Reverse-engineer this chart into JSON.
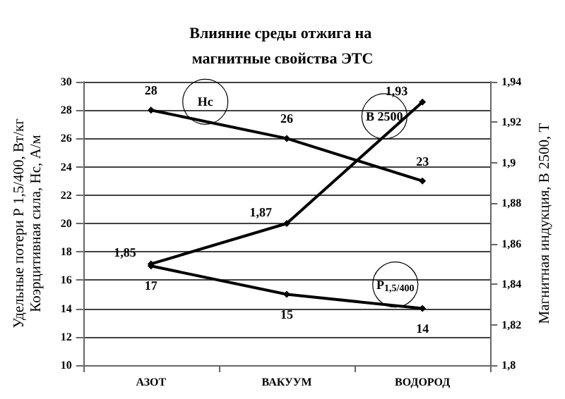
{
  "chart_data": {
    "type": "line",
    "title": "Влияние среды отжига на магнитные свойства ЭТС",
    "ylabel": "Удельные потери Р 1,5/400, Вт/кг\nКоэрцитивная сила, Нс, А/м",
    "y2label": "Магнитная индукция, В 2500, Т",
    "categories": [
      "АЗОТ",
      "ВАКУУМ",
      "ВОДОРОД"
    ],
    "series": [
      {
        "name": "Нс",
        "color": "#000000",
        "values": [
          28,
          26,
          23
        ]
      },
      {
        "name": "В 2500",
        "color": "#000000",
        "values": [
          1.85,
          1.87,
          1.93
        ],
        "axis": "y2"
      },
      {
        "name": "Р$_{1,5/400}$",
        "color": "#000000",
        "values": [
          17,
          15,
          14
        ]
      }
    ],
    "ylim": [
      10,
      30
    ],
    "yticks": [
      10,
      12,
      14,
      16,
      18,
      20,
      22,
      24,
      26,
      28,
      30
    ],
    "y2lim": [
      1.8,
      1.94
    ],
    "y2ticks": [
      {
        "value": 1.8,
        "label": "1,8"
      },
      {
        "value": 1.82,
        "label": "1,82"
      },
      {
        "value": 1.84,
        "label": "1,84"
      },
      {
        "value": 1.86,
        "label": "1,86"
      },
      {
        "value": 1.88,
        "label": "1,88"
      },
      {
        "value": 1.9,
        "label": "1,9"
      },
      {
        "value": 1.92,
        "label": "1,92"
      },
      {
        "value": 1.94,
        "label": "1,94"
      }
    ],
    "value_labels": [
      [
        "28",
        "26",
        "23"
      ],
      [
        "1,85",
        "1,87",
        "1,93"
      ],
      [
        "17",
        "15",
        "14"
      ]
    ],
    "grid": "y",
    "legend": false,
    "marker": "diamond",
    "line_style": "solid"
  }
}
